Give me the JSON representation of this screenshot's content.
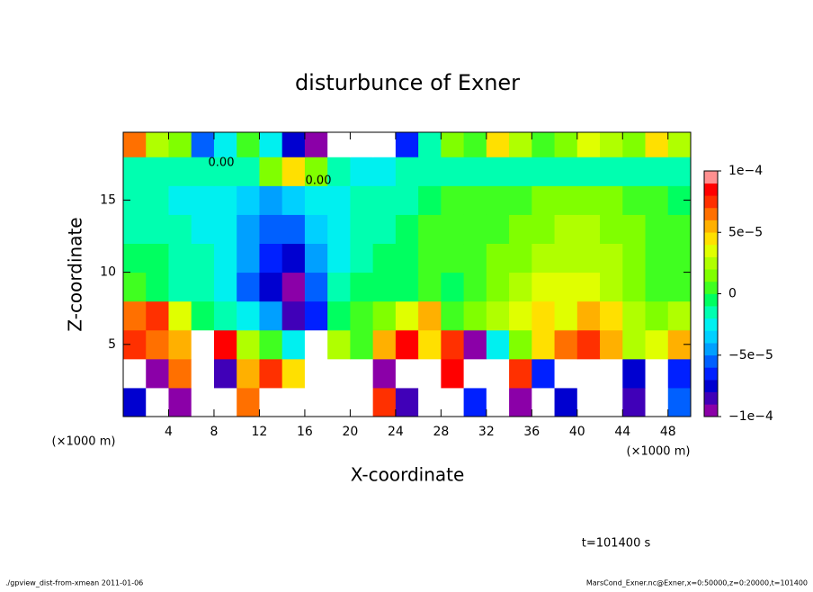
{
  "chart_data": {
    "type": "heatmap",
    "title": "disturbunce of Exner",
    "x_label": "X-coordinate",
    "y_label": "Z-coordinate",
    "x_unit_label_left": "(×1000 m)",
    "x_unit_label_right": "(×1000 m)",
    "time_label": "t=101400 s",
    "footer_left": "./gpview_dist-from-xmean  2011-01-06",
    "footer_right": "MarsCond_Exner.nc@Exner,x=0:50000,z=0:20000,t=101400",
    "contour_labels": [
      "0.00",
      "0.00"
    ],
    "xlim": [
      0,
      50
    ],
    "ylim": [
      0,
      19.7
    ],
    "xticks": [
      4,
      8,
      12,
      16,
      20,
      24,
      28,
      32,
      36,
      40,
      44,
      48
    ],
    "yticks": [
      5,
      10,
      15
    ],
    "x": [
      1,
      3,
      5,
      7,
      9,
      11,
      13,
      15,
      17,
      19,
      21,
      23,
      25,
      27,
      29,
      31,
      33,
      35,
      37,
      39,
      41,
      43,
      45,
      47,
      49
    ],
    "y": [
      1,
      3,
      5,
      7,
      9,
      11,
      13,
      15,
      17,
      19
    ],
    "z": [
      [
        -7e-05,
        0.00012,
        -9e-05,
        0.00012,
        0.00012,
        7e-05,
        0.00012,
        0.00012,
        0.00012,
        -0.00012,
        -0.00012,
        8e-05,
        -8e-05,
        0.00012,
        0.00012,
        -6e-05,
        0.00012,
        -9e-05,
        0.00012,
        -7e-05,
        0.00012,
        -0.00012,
        -8e-05,
        0.00012,
        -5e-05
      ],
      [
        0.00012,
        -9e-05,
        7e-05,
        0.00012,
        -8e-05,
        6e-05,
        8e-05,
        5e-05,
        0.00012,
        -0.00012,
        -0.00012,
        -9e-05,
        0.00012,
        0.00012,
        9e-05,
        -0.00012,
        0.00012,
        8e-05,
        -6e-05,
        0.00012,
        0.00012,
        -0.00012,
        -7e-05,
        0.00012,
        -6e-05
      ],
      [
        8e-05,
        7e-05,
        6e-05,
        0.00012,
        9e-05,
        3e-05,
        1e-05,
        -2e-05,
        -0.00012,
        3e-05,
        1e-05,
        6e-05,
        9e-05,
        5e-05,
        8e-05,
        -9e-05,
        -2e-05,
        2e-05,
        5e-05,
        7e-05,
        8e-05,
        6e-05,
        3e-05,
        4e-05,
        6e-05
      ],
      [
        7e-05,
        8e-05,
        4e-05,
        0,
        -1e-05,
        -2e-05,
        -4e-05,
        -8e-05,
        -6e-05,
        0,
        1e-05,
        2e-05,
        4e-05,
        6e-05,
        1e-05,
        2e-05,
        3e-05,
        4e-05,
        5e-05,
        4e-05,
        6e-05,
        5e-05,
        3e-05,
        2e-05,
        3e-05
      ],
      [
        1e-05,
        0,
        -1e-05,
        -1e-05,
        -2e-05,
        -5e-05,
        -7e-05,
        -9e-05,
        -5e-05,
        -1e-05,
        0,
        0,
        0,
        1e-05,
        0,
        1e-05,
        2e-05,
        3e-05,
        4e-05,
        4e-05,
        4e-05,
        3e-05,
        2e-05,
        1e-05,
        1e-05
      ],
      [
        0,
        0,
        -1e-05,
        -1e-05,
        -2e-05,
        -4e-05,
        -6e-05,
        -7e-05,
        -4e-05,
        -2e-05,
        -1e-05,
        0,
        0,
        1e-05,
        1e-05,
        1e-05,
        2e-05,
        2e-05,
        3e-05,
        3e-05,
        3e-05,
        3e-05,
        2e-05,
        1e-05,
        1e-05
      ],
      [
        -1e-05,
        -1e-05,
        -1e-05,
        -2e-05,
        -2e-05,
        -4e-05,
        -5e-05,
        -5e-05,
        -3e-05,
        -2e-05,
        -1e-05,
        -1e-05,
        0,
        1e-05,
        1e-05,
        1e-05,
        1e-05,
        2e-05,
        2e-05,
        3e-05,
        3e-05,
        2e-05,
        2e-05,
        1e-05,
        1e-05
      ],
      [
        -1e-05,
        -1e-05,
        -2e-05,
        -2e-05,
        -2e-05,
        -3e-05,
        -4e-05,
        -3e-05,
        -2e-05,
        -2e-05,
        -1e-05,
        -1e-05,
        -1e-05,
        0,
        1e-05,
        1e-05,
        1e-05,
        1e-05,
        2e-05,
        2e-05,
        2e-05,
        2e-05,
        1e-05,
        1e-05,
        0
      ],
      [
        -1e-05,
        -1e-05,
        -1e-05,
        -1e-05,
        -1e-05,
        -1e-05,
        2e-05,
        5e-05,
        2e-05,
        -1e-05,
        -2e-05,
        -2e-05,
        -1e-05,
        -1e-05,
        -1e-05,
        -1e-05,
        -1e-05,
        -1e-05,
        -1e-05,
        -1e-05,
        -1e-05,
        -1e-05,
        -1e-05,
        -1e-05,
        -1e-05
      ],
      [
        7e-05,
        3e-05,
        2e-05,
        -5e-05,
        -2e-05,
        1e-05,
        -2e-05,
        -7e-05,
        -9e-05,
        -0.00012,
        -0.00012,
        -0.00012,
        -6e-05,
        -1e-05,
        2e-05,
        1e-05,
        5e-05,
        3e-05,
        1e-05,
        2e-05,
        4e-05,
        3e-05,
        2e-05,
        5e-05,
        3e-05
      ]
    ],
    "levels": [
      -0.0001,
      -9e-05,
      -8e-05,
      -7e-05,
      -6e-05,
      -5e-05,
      -4e-05,
      -3e-05,
      -2e-05,
      -1e-05,
      0,
      1e-05,
      2e-05,
      3e-05,
      4e-05,
      5e-05,
      6e-05,
      7e-05,
      8e-05,
      9e-05,
      0.0001
    ],
    "colors": [
      "#8b00a8",
      "#4000b8",
      "#0000d0",
      "#0020ff",
      "#0060ff",
      "#00a0ff",
      "#00d0ff",
      "#00f0f0",
      "#00ffb0",
      "#00ff60",
      "#40ff20",
      "#80ff00",
      "#b0ff00",
      "#e0ff00",
      "#ffe000",
      "#ffb000",
      "#ff7000",
      "#ff3000",
      "#ff0000",
      "#ff9090"
    ],
    "out_of_range_color": "#ffffff",
    "colorbar_ticks": [
      {
        "value": -0.0001,
        "label": "−1e−4"
      },
      {
        "value": -5e-05,
        "label": "−5e−5"
      },
      {
        "value": 0,
        "label": "0"
      },
      {
        "value": 5e-05,
        "label": "5e−5"
      },
      {
        "value": 0.0001,
        "label": "1e−4"
      }
    ]
  }
}
